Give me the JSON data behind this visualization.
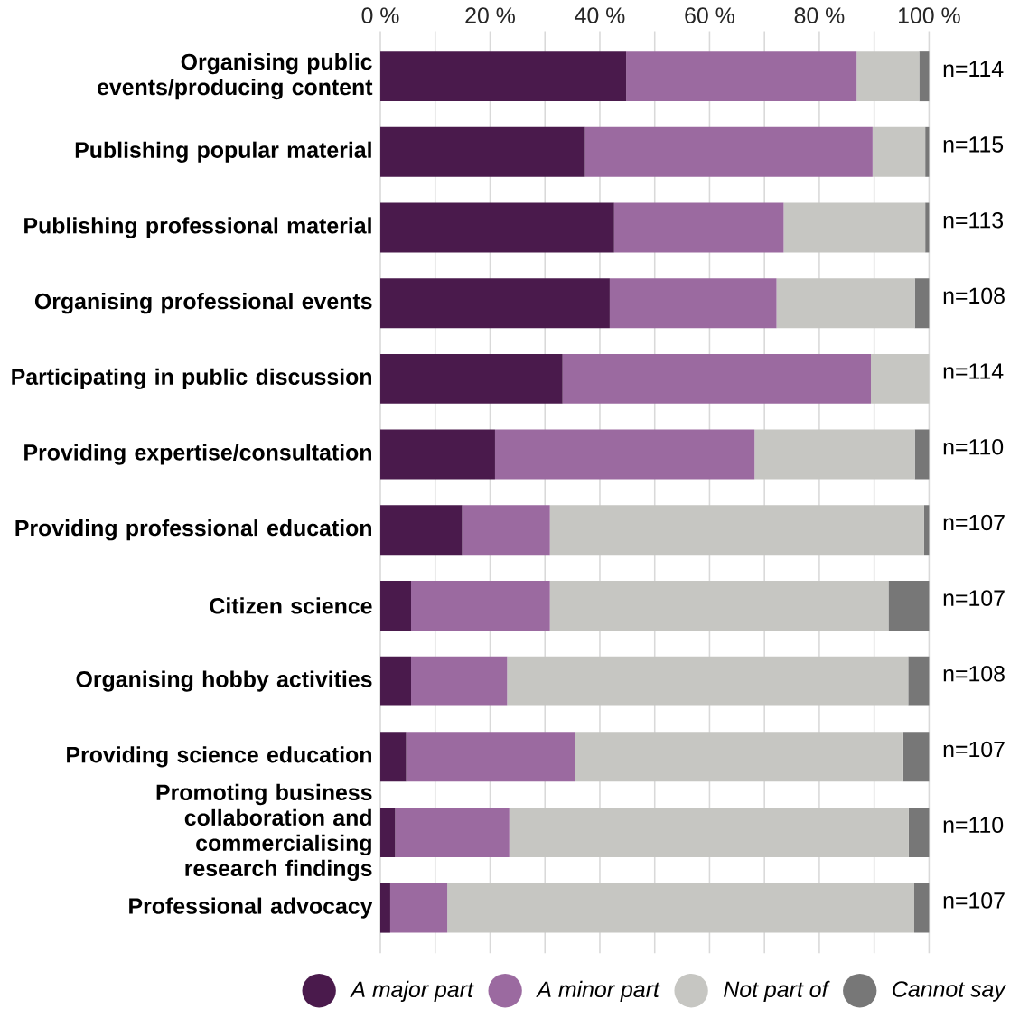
{
  "chart_data": {
    "type": "bar",
    "orientation": "horizontal",
    "stacked": true,
    "categories": [
      "Organising public events/producing content",
      "Publishing popular material",
      "Publishing professional material",
      "Organising professional events",
      "Participating in public discussion",
      "Providing expertise/consultation",
      "Providing professional education",
      "Citizen science",
      "Organising hobby activities",
      "Providing science education",
      "Promoting business collaboration and commercialising research findings",
      "Professional advocacy"
    ],
    "series": [
      {
        "name": "A major part",
        "color": "#4a1a4c",
        "values": [
          44.8,
          37.3,
          42.6,
          41.8,
          33.2,
          20.9,
          14.9,
          5.6,
          5.6,
          4.7,
          2.7,
          1.8
        ]
      },
      {
        "name": "A minor part",
        "color": "#9b6aa0",
        "values": [
          42.0,
          52.4,
          30.9,
          30.4,
          56.2,
          47.3,
          16.0,
          25.3,
          17.5,
          30.7,
          20.8,
          10.4
        ]
      },
      {
        "name": "Not part of",
        "color": "#c6c6c2",
        "values": [
          11.4,
          9.6,
          25.8,
          25.2,
          10.6,
          29.2,
          68.2,
          61.7,
          73.1,
          59.9,
          72.8,
          85.1
        ]
      },
      {
        "name": "Cannot say",
        "color": "#777777",
        "values": [
          1.8,
          0.7,
          0.7,
          2.6,
          0,
          2.6,
          0.9,
          7.4,
          3.8,
          4.7,
          3.7,
          2.7
        ]
      }
    ],
    "xlim": [
      0,
      100
    ],
    "xticks": [
      {
        "value": 0,
        "label": "0 %"
      },
      {
        "value": 10,
        "label": null
      },
      {
        "value": 20,
        "label": "20 %"
      },
      {
        "value": 30,
        "label": null
      },
      {
        "value": 40,
        "label": "40 %"
      },
      {
        "value": 50,
        "label": null
      },
      {
        "value": 60,
        "label": "60 %"
      },
      {
        "value": 70,
        "label": null
      },
      {
        "value": 80,
        "label": "80 %"
      },
      {
        "value": 90,
        "label": null
      },
      {
        "value": 100,
        "label": "100 %"
      }
    ],
    "grid": "x",
    "legend": "bottom",
    "annotations": [
      "n=114",
      "n=115",
      "n=113",
      "n=108",
      "n=114",
      "n=110",
      "n=107",
      "n=107",
      "n=108",
      "n=107",
      "n=110",
      "n=107"
    ]
  }
}
